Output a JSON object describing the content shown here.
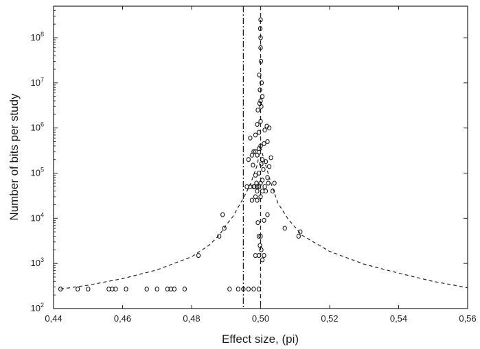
{
  "chart_data": {
    "type": "scatter",
    "title": "",
    "xlabel": "Effect size, (pi)",
    "ylabel": "Number of bits per study",
    "xlim": [
      0.44,
      0.56
    ],
    "ylim": [
      100,
      500000000
    ],
    "y_scale": "log",
    "grid": false,
    "x_ticks": [
      0.44,
      0.46,
      0.48,
      0.5,
      0.52,
      0.54,
      0.56
    ],
    "x_tick_labels": [
      "0,44",
      "0,46",
      "0,48",
      "0,50",
      "0,52",
      "0,54",
      "0,56"
    ],
    "y_ticks": [
      100,
      1000,
      10000,
      100000,
      1000000,
      10000000,
      100000000
    ],
    "y_tick_labels": [
      {
        "base": "10",
        "exp": "2"
      },
      {
        "base": "10",
        "exp": "3"
      },
      {
        "base": "10",
        "exp": "4"
      },
      {
        "base": "10",
        "exp": "5"
      },
      {
        "base": "10",
        "exp": "6"
      },
      {
        "base": "10",
        "exp": "7"
      },
      {
        "base": "10",
        "exp": "8"
      }
    ],
    "reference_lines": [
      {
        "x": 0.495,
        "style": "dash-dot"
      },
      {
        "x": 0.5,
        "style": "dashed"
      }
    ],
    "funnel_lines": [
      {
        "x": [
          0.442,
          0.45,
          0.46,
          0.47,
          0.48,
          0.485,
          0.488,
          0.49,
          0.492,
          0.495,
          0.497,
          0.499,
          0.5
        ],
        "y": [
          270,
          330,
          460,
          720,
          1400,
          2500,
          4200,
          7000,
          11000,
          28000,
          55000,
          150000,
          380000
        ]
      },
      {
        "x": [
          0.5,
          0.501,
          0.503,
          0.505,
          0.508,
          0.512,
          0.52,
          0.53,
          0.54,
          0.55,
          0.56
        ],
        "y": [
          380000,
          200000,
          60000,
          22000,
          9500,
          4200,
          1850,
          960,
          610,
          400,
          290
        ]
      }
    ],
    "points": {
      "x": [
        0.442,
        0.447,
        0.45,
        0.456,
        0.457,
        0.458,
        0.461,
        0.467,
        0.47,
        0.473,
        0.474,
        0.475,
        0.478,
        0.491,
        0.4935,
        0.495,
        0.4965,
        0.498,
        0.4995,
        0.482,
        0.488,
        0.4895,
        0.489,
        0.507,
        0.511,
        0.5115,
        0.4985,
        0.4995,
        0.501,
        0.4995,
        0.5,
        0.5005,
        0.4998,
        0.5002,
        0.4992,
        0.501,
        0.502,
        0.4975,
        0.499,
        0.4985,
        0.5,
        0.499,
        0.5005,
        0.5015,
        0.4982,
        0.4995,
        0.5012,
        0.497,
        0.4988,
        0.5,
        0.5022,
        0.496,
        0.498,
        0.499,
        0.5005,
        0.502,
        0.5035,
        0.4985,
        0.4995,
        0.5008,
        0.5025,
        0.4978,
        0.5002,
        0.5015,
        0.504,
        0.4965,
        0.4975,
        0.4985,
        0.4995,
        0.5,
        0.501,
        0.502,
        0.498,
        0.499,
        0.5005,
        0.503,
        0.497,
        0.4985,
        0.4995,
        0.5012,
        0.5025,
        0.499,
        0.5,
        0.5018,
        0.4992,
        0.5002,
        0.4997,
        0.5,
        0.5005,
        0.4998,
        0.5003,
        0.4996,
        0.5001,
        0.5,
        0.5,
        0.4999,
        0.5
      ],
      "y": [
        270,
        270,
        270,
        270,
        270,
        270,
        270,
        270,
        270,
        270,
        270,
        270,
        270,
        270,
        270,
        270,
        270,
        270,
        270,
        1500,
        4000,
        6000,
        12000,
        6000,
        4000,
        5000,
        1500,
        1500,
        1500,
        4000,
        4000,
        1200,
        2500,
        2000,
        8000,
        9000,
        12000,
        25000,
        25000,
        30000,
        30000,
        40000,
        40000,
        40000,
        50000,
        50000,
        50000,
        50000,
        60000,
        60000,
        60000,
        50000,
        50000,
        50000,
        70000,
        80000,
        40000,
        90000,
        100000,
        120000,
        140000,
        150000,
        160000,
        180000,
        60000,
        200000,
        250000,
        300000,
        350000,
        400000,
        450000,
        500000,
        300000,
        250000,
        200000,
        220000,
        600000,
        700000,
        800000,
        900000,
        1000000,
        1200000,
        1400000,
        1100000,
        2500000,
        3000000,
        3500000,
        4000000,
        5000000,
        7000000,
        10000000,
        15000000,
        30000000,
        60000000,
        100000000,
        160000000,
        250000000
      ]
    }
  }
}
